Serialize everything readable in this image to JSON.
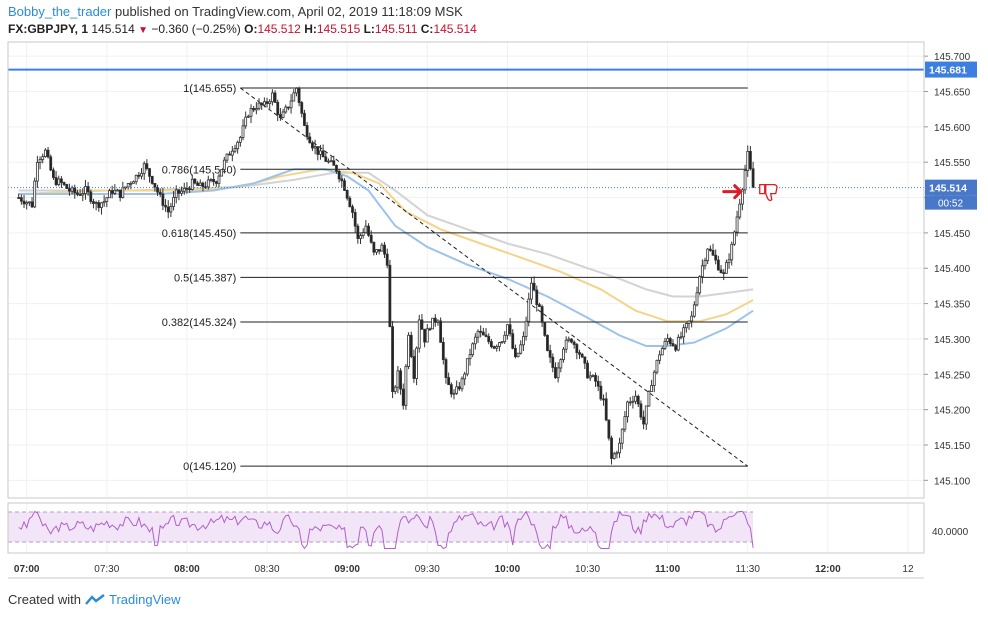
{
  "header": {
    "author": "Bobby_the_trader",
    "published_text": "published on TradingView.com, April 02, 2019 11:18:09 MSK",
    "symbol": "FX:GBPJPY, 1",
    "last": "145.514",
    "change": "−0.360 (−0.25%)",
    "o_label": "O:",
    "o_value": "145.512",
    "h_label": "H:",
    "h_value": "145.515",
    "l_label": "L:",
    "l_value": "145.511",
    "c_label": "C:",
    "c_value": "145.514"
  },
  "footer": {
    "created_with": "Created with",
    "brand": "TradingView"
  },
  "colors": {
    "up": "#ffffff",
    "down": "#222222",
    "wick": "#333333",
    "ma_fast": "#9dc3ea",
    "ma_mid": "#f3d58a",
    "ma_slow": "#d3d3d3",
    "resistance": "#3d7fe0",
    "rsi_line": "#b05fc9",
    "rsi_band": "#f3e5f8",
    "arrow": "#e01b24"
  },
  "chart_data": {
    "type": "candlestick",
    "price_axis": {
      "ylim": [
        145.075,
        145.72
      ],
      "ticks": [
        "145.700",
        "145.650",
        "145.600",
        "145.550",
        "145.500",
        "145.450",
        "145.400",
        "145.350",
        "145.300",
        "145.250",
        "145.200",
        "145.150",
        "145.100"
      ],
      "current_price_label": "145.514",
      "countdown_label": "00:52",
      "resistance_label": "145.681",
      "resistance_value": 145.681,
      "current_price_value": 145.514
    },
    "time_axis": {
      "ticks": [
        {
          "label": "07:00",
          "bold": true,
          "t": 0
        },
        {
          "label": "07:30",
          "bold": false,
          "t": 30
        },
        {
          "label": "08:00",
          "bold": true,
          "t": 60
        },
        {
          "label": "08:30",
          "bold": false,
          "t": 90
        },
        {
          "label": "09:00",
          "bold": true,
          "t": 120
        },
        {
          "label": "09:30",
          "bold": false,
          "t": 150
        },
        {
          "label": "10:00",
          "bold": true,
          "t": 180
        },
        {
          "label": "10:30",
          "bold": false,
          "t": 210
        },
        {
          "label": "11:00",
          "bold": true,
          "t": 240
        },
        {
          "label": "11:30",
          "bold": false,
          "t": 270
        },
        {
          "label": "12:00",
          "bold": true,
          "t": 300
        },
        {
          "label": "12",
          "bold": false,
          "t": 330
        }
      ]
    },
    "fib_levels": [
      {
        "label": "1(145.655)",
        "value": 145.655
      },
      {
        "label": "0.786(145.540)",
        "value": 145.54
      },
      {
        "label": "0.618(145.450)",
        "value": 145.45
      },
      {
        "label": "0.5(145.387)",
        "value": 145.387
      },
      {
        "label": "0.382(145.324)",
        "value": 145.324
      },
      {
        "label": "0(145.120)",
        "value": 145.12
      }
    ],
    "fib_range_t": [
      80,
      270
    ],
    "trend_line": {
      "t1": 80,
      "p1": 145.655,
      "t2": 270,
      "p2": 145.12
    },
    "rsi_axis": {
      "label": "40.0000"
    },
    "anchor_points": [
      [
        -3,
        145.5
      ],
      [
        2,
        145.49
      ],
      [
        4,
        145.555
      ],
      [
        7,
        145.565
      ],
      [
        10,
        145.525
      ],
      [
        13,
        145.52
      ],
      [
        16,
        145.51
      ],
      [
        19,
        145.505
      ],
      [
        22,
        145.51
      ],
      [
        26,
        145.49
      ],
      [
        29,
        145.495
      ],
      [
        32,
        145.51
      ],
      [
        35,
        145.505
      ],
      [
        38,
        145.52
      ],
      [
        41,
        145.53
      ],
      [
        44,
        145.545
      ],
      [
        47,
        145.525
      ],
      [
        50,
        145.5
      ],
      [
        53,
        145.48
      ],
      [
        56,
        145.505
      ],
      [
        59,
        145.51
      ],
      [
        62,
        145.52
      ],
      [
        65,
        145.515
      ],
      [
        68,
        145.52
      ],
      [
        71,
        145.525
      ],
      [
        74,
        145.55
      ],
      [
        77,
        145.57
      ],
      [
        80,
        145.585
      ],
      [
        83,
        145.62
      ],
      [
        86,
        145.63
      ],
      [
        89,
        145.63
      ],
      [
        92,
        145.645
      ],
      [
        95,
        145.61
      ],
      [
        98,
        145.63
      ],
      [
        101,
        145.655
      ],
      [
        104,
        145.6
      ],
      [
        107,
        145.575
      ],
      [
        110,
        145.56
      ],
      [
        113,
        145.55
      ],
      [
        116,
        145.54
      ],
      [
        119,
        145.515
      ],
      [
        122,
        145.48
      ],
      [
        124,
        145.44
      ],
      [
        127,
        145.46
      ],
      [
        130,
        145.42
      ],
      [
        133,
        145.43
      ],
      [
        135,
        145.41
      ],
      [
        137,
        145.22
      ],
      [
        139,
        145.25
      ],
      [
        141,
        145.21
      ],
      [
        143,
        145.31
      ],
      [
        145,
        145.25
      ],
      [
        147,
        145.33
      ],
      [
        149,
        145.3
      ],
      [
        151,
        145.32
      ],
      [
        154,
        145.33
      ],
      [
        157,
        145.24
      ],
      [
        160,
        145.22
      ],
      [
        163,
        145.24
      ],
      [
        166,
        145.28
      ],
      [
        169,
        145.31
      ],
      [
        172,
        145.3
      ],
      [
        175,
        145.29
      ],
      [
        178,
        145.3
      ],
      [
        180,
        145.32
      ],
      [
        183,
        145.27
      ],
      [
        186,
        145.3
      ],
      [
        189,
        145.38
      ],
      [
        192,
        145.34
      ],
      [
        195,
        145.28
      ],
      [
        198,
        145.25
      ],
      [
        201,
        145.29
      ],
      [
        204,
        145.3
      ],
      [
        207,
        145.28
      ],
      [
        210,
        145.25
      ],
      [
        213,
        145.24
      ],
      [
        216,
        145.21
      ],
      [
        219,
        145.13
      ],
      [
        222,
        145.15
      ],
      [
        225,
        145.21
      ],
      [
        228,
        145.22
      ],
      [
        231,
        145.18
      ],
      [
        234,
        145.24
      ],
      [
        237,
        145.28
      ],
      [
        240,
        145.3
      ],
      [
        243,
        145.29
      ],
      [
        246,
        145.31
      ],
      [
        249,
        145.33
      ],
      [
        252,
        145.39
      ],
      [
        255,
        145.43
      ],
      [
        258,
        145.41
      ],
      [
        261,
        145.39
      ],
      [
        264,
        145.43
      ],
      [
        267,
        145.495
      ],
      [
        270,
        145.56
      ],
      [
        272,
        145.514
      ]
    ],
    "ma_fast": [
      [
        -3,
        145.505
      ],
      [
        20,
        145.505
      ],
      [
        50,
        145.505
      ],
      [
        70,
        145.51
      ],
      [
        85,
        145.52
      ],
      [
        100,
        145.54
      ],
      [
        112,
        145.54
      ],
      [
        120,
        145.53
      ],
      [
        128,
        145.51
      ],
      [
        138,
        145.46
      ],
      [
        150,
        145.43
      ],
      [
        165,
        145.405
      ],
      [
        180,
        145.385
      ],
      [
        195,
        145.36
      ],
      [
        210,
        145.33
      ],
      [
        222,
        145.305
      ],
      [
        232,
        145.29
      ],
      [
        240,
        145.29
      ],
      [
        250,
        145.295
      ],
      [
        262,
        145.315
      ],
      [
        272,
        145.34
      ]
    ],
    "ma_mid": [
      [
        -3,
        145.505
      ],
      [
        30,
        145.51
      ],
      [
        60,
        145.51
      ],
      [
        80,
        145.515
      ],
      [
        95,
        145.53
      ],
      [
        110,
        145.54
      ],
      [
        122,
        145.535
      ],
      [
        132,
        145.52
      ],
      [
        142,
        145.48
      ],
      [
        155,
        145.455
      ],
      [
        170,
        145.435
      ],
      [
        185,
        145.415
      ],
      [
        200,
        145.395
      ],
      [
        215,
        145.37
      ],
      [
        228,
        145.34
      ],
      [
        240,
        145.325
      ],
      [
        252,
        145.325
      ],
      [
        262,
        145.335
      ],
      [
        272,
        145.355
      ]
    ],
    "ma_slow": [
      [
        -3,
        145.51
      ],
      [
        40,
        145.51
      ],
      [
        80,
        145.515
      ],
      [
        100,
        145.525
      ],
      [
        115,
        145.535
      ],
      [
        128,
        145.535
      ],
      [
        138,
        145.51
      ],
      [
        150,
        145.475
      ],
      [
        165,
        145.455
      ],
      [
        180,
        145.435
      ],
      [
        195,
        145.42
      ],
      [
        210,
        145.4
      ],
      [
        222,
        145.385
      ],
      [
        232,
        145.37
      ],
      [
        242,
        145.36
      ],
      [
        252,
        145.36
      ],
      [
        262,
        145.365
      ],
      [
        272,
        145.37
      ]
    ],
    "rsi_values_hint": "oscillates around 40-60"
  }
}
